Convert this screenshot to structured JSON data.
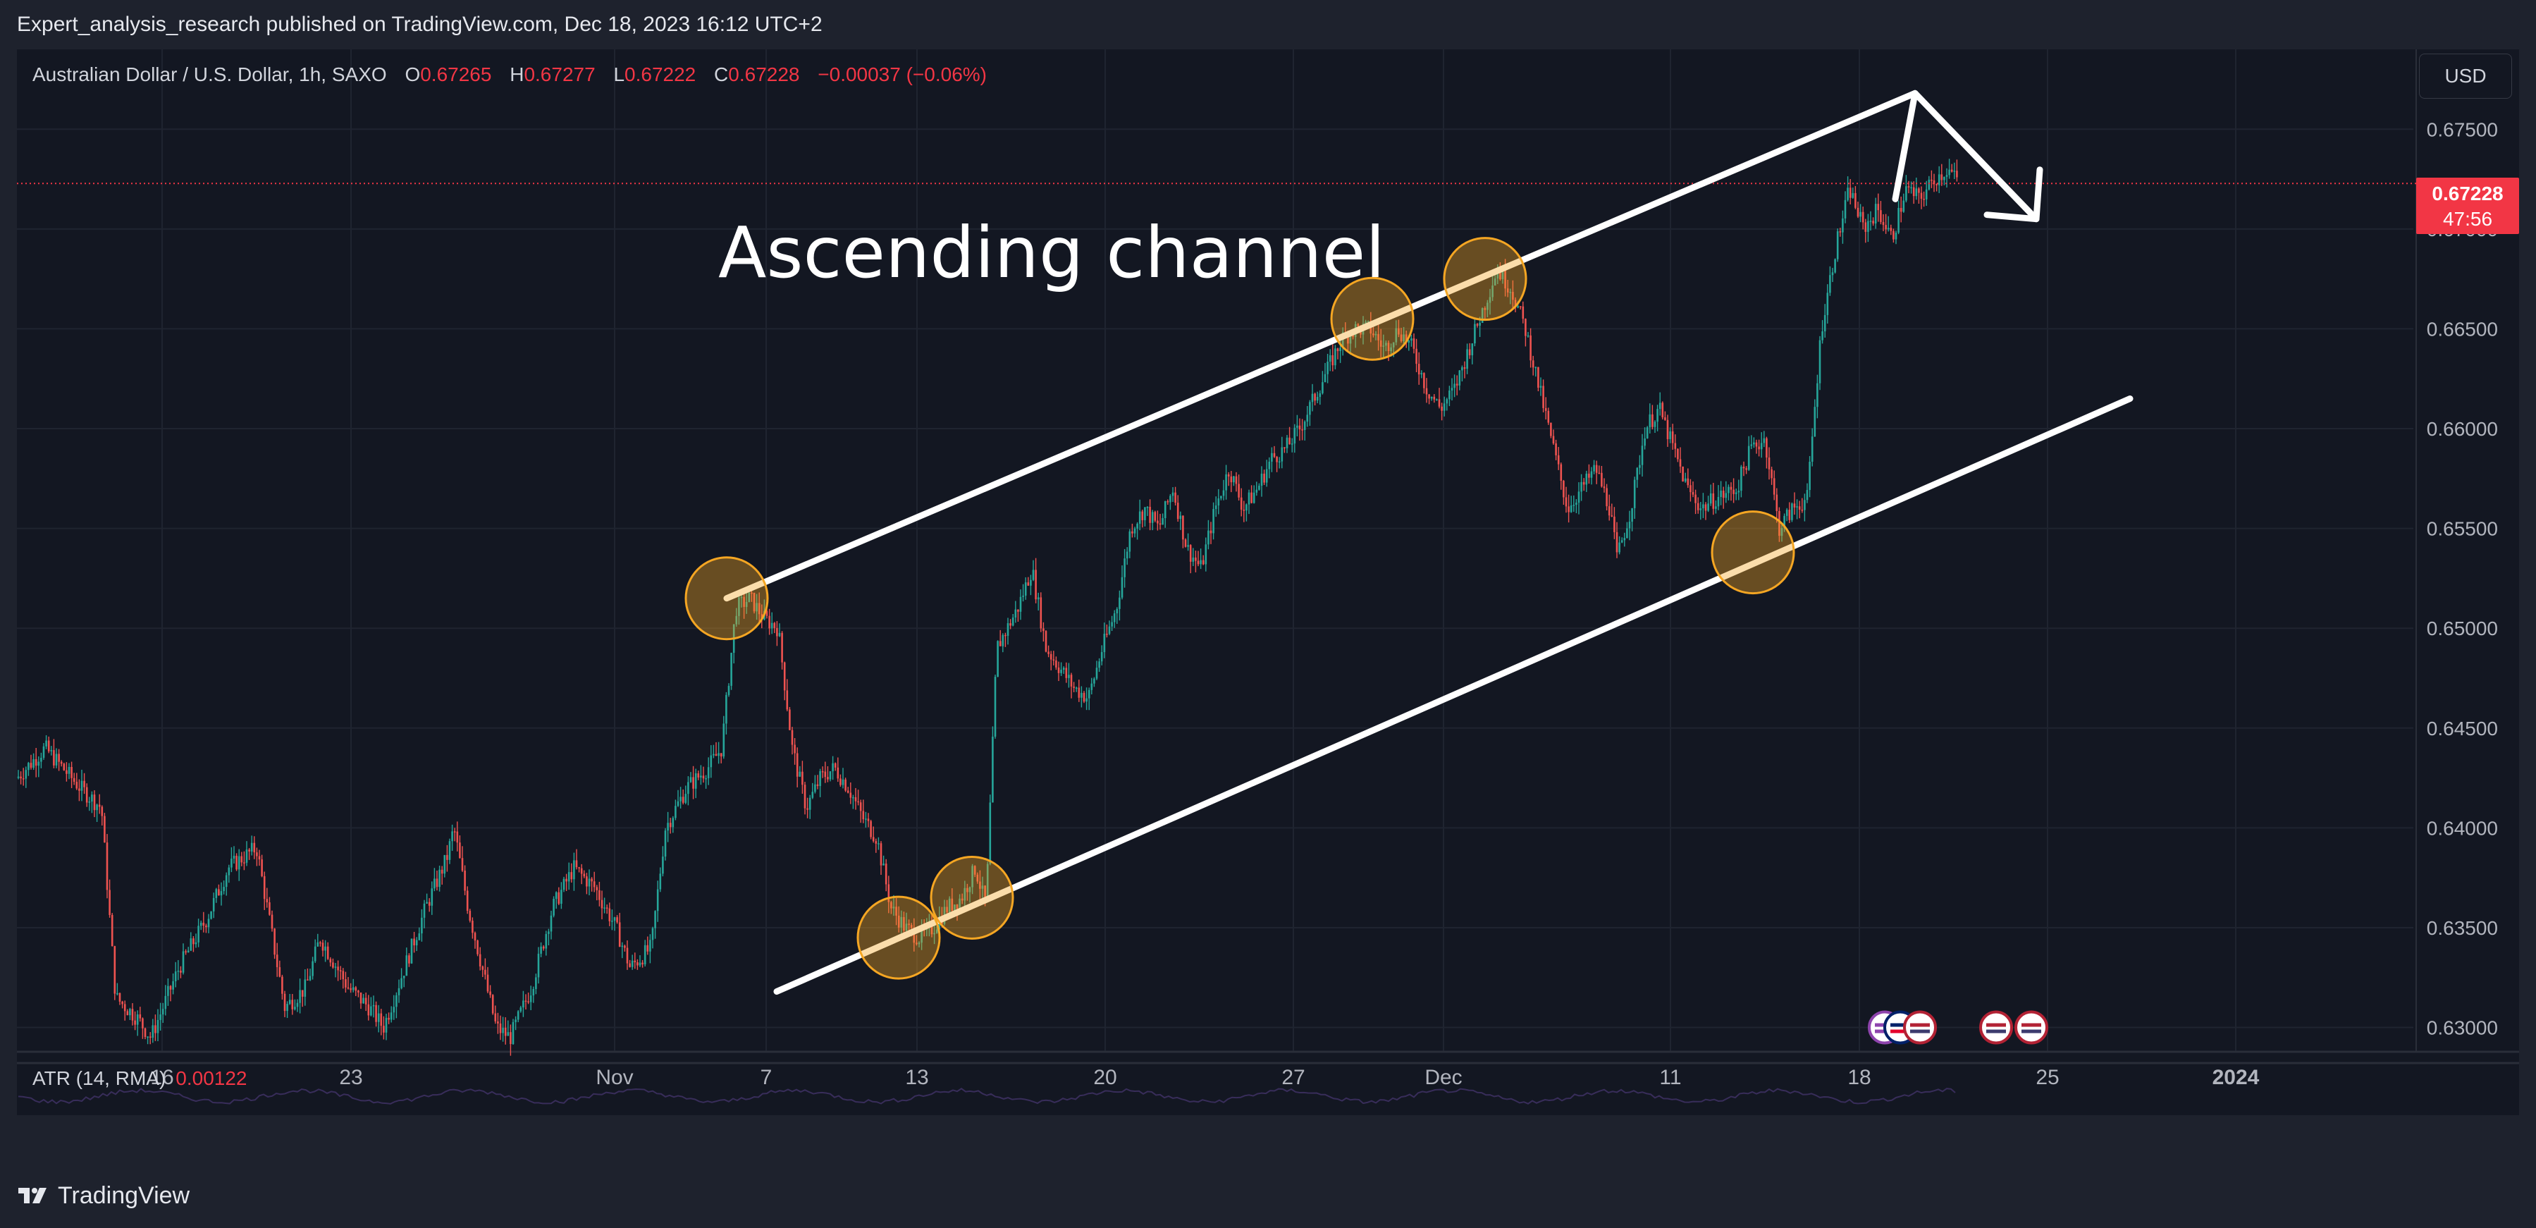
{
  "header": {
    "publisher_line": "Expert_analysis_research published on TradingView.com, Dec 18, 2023 16:12 UTC+2"
  },
  "legend": {
    "symbol": "Australian Dollar / U.S. Dollar, 1h, SAXO",
    "open_label": "O",
    "open": "0.67265",
    "high_label": "H",
    "high": "0.67277",
    "low_label": "L",
    "low": "0.67222",
    "close_label": "C",
    "close": "0.67228",
    "change": "−0.00037 (−0.06%)"
  },
  "currency_button": "USD",
  "last_price": {
    "price": "0.67228",
    "countdown": "47:56"
  },
  "annotation": "Ascending channel",
  "indicator": {
    "label": "ATR (14, RMA)",
    "value": "0.00122"
  },
  "footer": {
    "logo_text": "TradingView"
  },
  "colors": {
    "up": "#26a69a",
    "down": "#ef5350",
    "accent_red": "#f23645",
    "highlight": "#f5a623",
    "background": "#131722"
  },
  "chart_data": {
    "type": "candlestick",
    "symbol": "AUDUSD",
    "interval": "1h",
    "y_axis": {
      "ticks": [
        "0.67500",
        "0.67000",
        "0.66500",
        "0.66000",
        "0.65500",
        "0.65000",
        "0.64500",
        "0.64000",
        "0.63500",
        "0.63000"
      ],
      "range": [
        0.6285,
        0.679
      ]
    },
    "x_axis": {
      "ticks": [
        "16",
        "23",
        "Nov",
        "7",
        "13",
        "20",
        "27",
        "Dec",
        "11",
        "18",
        "25",
        "2024"
      ]
    },
    "path": [
      [
        0,
        0.6425
      ],
      [
        40,
        0.644
      ],
      [
        90,
        0.642
      ],
      [
        120,
        0.641
      ],
      [
        140,
        0.6315
      ],
      [
        170,
        0.6305
      ],
      [
        190,
        0.6295
      ],
      [
        230,
        0.633
      ],
      [
        270,
        0.6355
      ],
      [
        300,
        0.638
      ],
      [
        340,
        0.639
      ],
      [
        360,
        0.635
      ],
      [
        380,
        0.631
      ],
      [
        410,
        0.632
      ],
      [
        430,
        0.6345
      ],
      [
        470,
        0.632
      ],
      [
        500,
        0.631
      ],
      [
        520,
        0.63
      ],
      [
        550,
        0.633
      ],
      [
        580,
        0.636
      ],
      [
        610,
        0.6385
      ],
      [
        620,
        0.64
      ],
      [
        640,
        0.636
      ],
      [
        660,
        0.633
      ],
      [
        680,
        0.63
      ],
      [
        700,
        0.6295
      ],
      [
        730,
        0.632
      ],
      [
        760,
        0.636
      ],
      [
        790,
        0.638
      ],
      [
        820,
        0.637
      ],
      [
        850,
        0.635
      ],
      [
        870,
        0.633
      ],
      [
        900,
        0.634
      ],
      [
        920,
        0.64
      ],
      [
        950,
        0.642
      ],
      [
        980,
        0.643
      ],
      [
        1000,
        0.644
      ],
      [
        1020,
        0.651
      ],
      [
        1040,
        0.6515
      ],
      [
        1060,
        0.6505
      ],
      [
        1080,
        0.65
      ],
      [
        1100,
        0.644
      ],
      [
        1120,
        0.641
      ],
      [
        1140,
        0.6425
      ],
      [
        1160,
        0.643
      ],
      [
        1180,
        0.642
      ],
      [
        1200,
        0.6405
      ],
      [
        1220,
        0.6395
      ],
      [
        1240,
        0.636
      ],
      [
        1260,
        0.635
      ],
      [
        1280,
        0.6345
      ],
      [
        1300,
        0.635
      ],
      [
        1320,
        0.636
      ],
      [
        1340,
        0.6365
      ],
      [
        1360,
        0.638
      ],
      [
        1375,
        0.636
      ],
      [
        1390,
        0.649
      ],
      [
        1420,
        0.651
      ],
      [
        1440,
        0.653
      ],
      [
        1460,
        0.649
      ],
      [
        1480,
        0.648
      ],
      [
        1500,
        0.647
      ],
      [
        1520,
        0.6465
      ],
      [
        1540,
        0.649
      ],
      [
        1560,
        0.651
      ],
      [
        1580,
        0.655
      ],
      [
        1600,
        0.656
      ],
      [
        1620,
        0.655
      ],
      [
        1640,
        0.657
      ],
      [
        1660,
        0.654
      ],
      [
        1680,
        0.653
      ],
      [
        1700,
        0.656
      ],
      [
        1720,
        0.658
      ],
      [
        1740,
        0.656
      ],
      [
        1760,
        0.657
      ],
      [
        1780,
        0.6585
      ],
      [
        1800,
        0.659
      ],
      [
        1820,
        0.66
      ],
      [
        1840,
        0.6615
      ],
      [
        1860,
        0.663
      ],
      [
        1880,
        0.6645
      ],
      [
        1900,
        0.665
      ],
      [
        1920,
        0.665
      ],
      [
        1940,
        0.664
      ],
      [
        1960,
        0.665
      ],
      [
        1980,
        0.664
      ],
      [
        2000,
        0.662
      ],
      [
        2020,
        0.661
      ],
      [
        2040,
        0.662
      ],
      [
        2060,
        0.664
      ],
      [
        2080,
        0.666
      ],
      [
        2100,
        0.668
      ],
      [
        2120,
        0.667
      ],
      [
        2140,
        0.665
      ],
      [
        2160,
        0.662
      ],
      [
        2180,
        0.659
      ],
      [
        2200,
        0.656
      ],
      [
        2220,
        0.657
      ],
      [
        2240,
        0.658
      ],
      [
        2260,
        0.656
      ],
      [
        2270,
        0.6535
      ],
      [
        2290,
        0.656
      ],
      [
        2310,
        0.66
      ],
      [
        2330,
        0.661
      ],
      [
        2350,
        0.659
      ],
      [
        2370,
        0.657
      ],
      [
        2390,
        0.656
      ],
      [
        2410,
        0.6565
      ],
      [
        2440,
        0.657
      ],
      [
        2460,
        0.659
      ],
      [
        2480,
        0.6595
      ],
      [
        2500,
        0.655
      ],
      [
        2520,
        0.656
      ],
      [
        2540,
        0.6565
      ],
      [
        2560,
        0.665
      ],
      [
        2580,
        0.669
      ],
      [
        2600,
        0.672
      ],
      [
        2620,
        0.67
      ],
      [
        2640,
        0.671
      ],
      [
        2660,
        0.6695
      ],
      [
        2680,
        0.672
      ],
      [
        2700,
        0.6715
      ],
      [
        2720,
        0.6725
      ],
      [
        2740,
        0.673
      ],
      [
        2755,
        0.6723
      ]
    ],
    "channel_lines": [
      {
        "name": "upper",
        "from": [
          "Nov 5",
          0.6515
        ],
        "to": [
          "Dec 20",
          0.6768
        ]
      },
      {
        "name": "lower",
        "from": [
          "Nov 8",
          0.6318
        ],
        "to": [
          "Dec 27",
          0.6615
        ]
      }
    ],
    "highlighted_touches": [
      [
        "Nov 5",
        0.6515
      ],
      [
        "Nov 12",
        0.6345
      ],
      [
        "Nov 14",
        0.6365
      ],
      [
        "Nov 29",
        0.6655
      ],
      [
        "Dec 4",
        0.6675
      ],
      [
        "Dec 14",
        0.6538
      ]
    ],
    "projection_arrow": {
      "from": [
        "Dec 20",
        0.6768
      ],
      "to": [
        "Dec 24",
        0.6705
      ]
    },
    "event_markers": [
      "AU",
      "US",
      "US",
      "US"
    ]
  }
}
